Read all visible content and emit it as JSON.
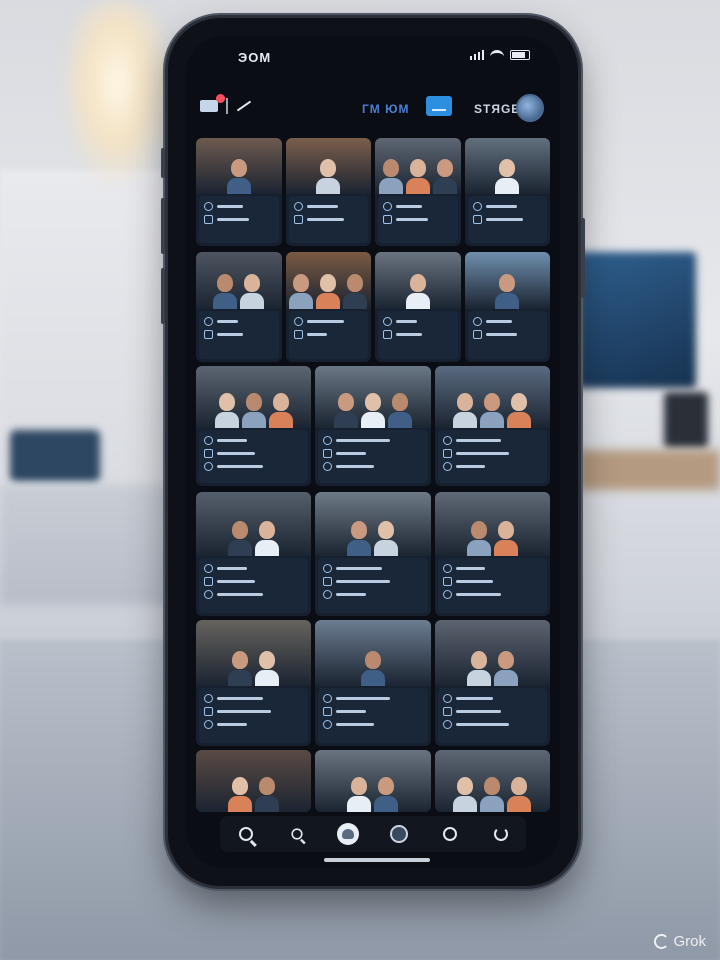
{
  "status_bar": {
    "time": "ЭОМ"
  },
  "header": {
    "center_label": "ГМ ЮМ",
    "right_label": "STЯGE"
  },
  "grid": {
    "rows": [
      {
        "cards": [
          {
            "people": 1,
            "tone": "#6d5a4f"
          },
          {
            "people": 1,
            "tone": "#7b5e4c"
          },
          {
            "people": 3,
            "tone": "#5d6672"
          },
          {
            "people": 1,
            "tone": "#62707e"
          }
        ]
      },
      {
        "cards": [
          {
            "people": 2,
            "tone": "#4e5561"
          },
          {
            "people": 3,
            "tone": "#7a5a43"
          },
          {
            "people": 1,
            "tone": "#6a7480"
          },
          {
            "people": 1,
            "tone": "#6f8fae"
          }
        ]
      },
      {
        "cards": [
          {
            "people": 3,
            "tone": "#5b6672"
          },
          {
            "people": 3,
            "tone": "#6a7784"
          },
          {
            "people": 3,
            "tone": "#5a6b80"
          }
        ]
      },
      {
        "cards": [
          {
            "people": 2,
            "tone": "#55606c"
          },
          {
            "people": 2,
            "tone": "#6e7a86"
          },
          {
            "people": 2,
            "tone": "#5f6a76"
          }
        ]
      },
      {
        "cards": [
          {
            "people": 2,
            "tone": "#66635e"
          },
          {
            "people": 1,
            "tone": "#6c7d92"
          },
          {
            "people": 2,
            "tone": "#5c6470"
          }
        ]
      },
      {
        "cards": [
          {
            "people": 2,
            "tone": "#5a4a44"
          },
          {
            "people": 2,
            "tone": "#6a7480"
          },
          {
            "people": 3,
            "tone": "#5e6874"
          }
        ]
      }
    ]
  },
  "nav": {
    "items": [
      "search",
      "zoom",
      "home",
      "profile",
      "camera",
      "power"
    ]
  },
  "watermark": "Grok"
}
